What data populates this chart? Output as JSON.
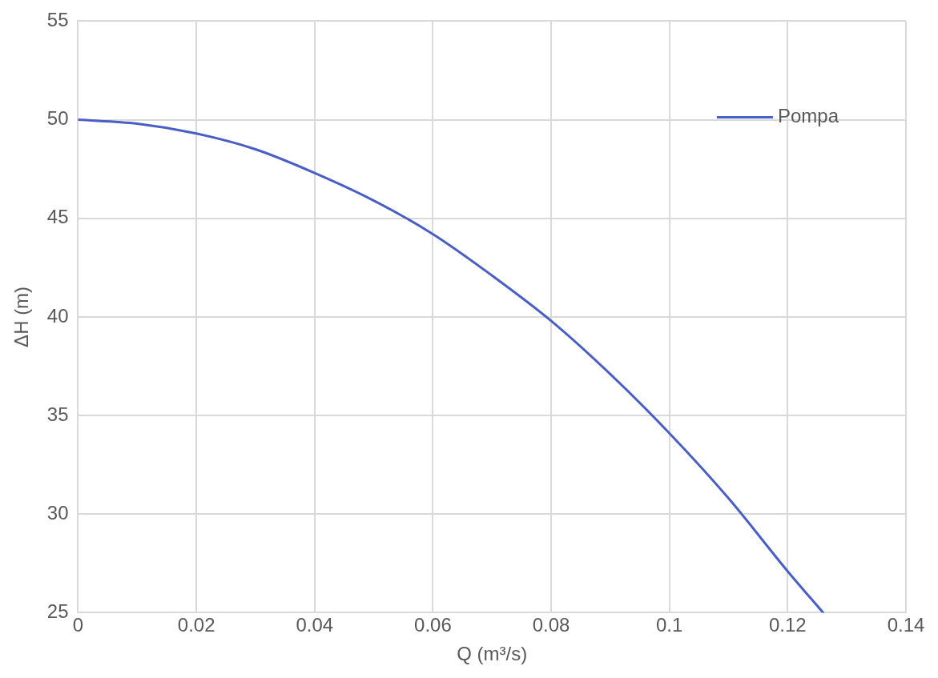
{
  "chart_data": {
    "type": "line",
    "xlabel": "Q (m³/s)",
    "ylabel": "ΔH (m)",
    "xlim": [
      0,
      0.14
    ],
    "xticks": [
      0,
      0.02,
      0.04,
      0.06,
      0.08,
      0.1,
      0.12,
      0.14
    ],
    "ylim": [
      25,
      55
    ],
    "yticks": [
      25,
      30,
      35,
      40,
      45,
      50,
      55
    ],
    "grid": true,
    "legend": "top right",
    "marker": "none",
    "line_style": "solid",
    "series": [
      {
        "name": "Pompa",
        "color": "#4a5fc4",
        "x": [
          0,
          0.01,
          0.02,
          0.03,
          0.04,
          0.05,
          0.06,
          0.07,
          0.08,
          0.09,
          0.1,
          0.11,
          0.12,
          0.126
        ],
        "values": [
          50,
          49.8,
          49.3,
          48.5,
          47.3,
          45.9,
          44.2,
          42.1,
          39.8,
          37.1,
          34.1,
          30.8,
          27.1,
          25
        ]
      }
    ]
  }
}
